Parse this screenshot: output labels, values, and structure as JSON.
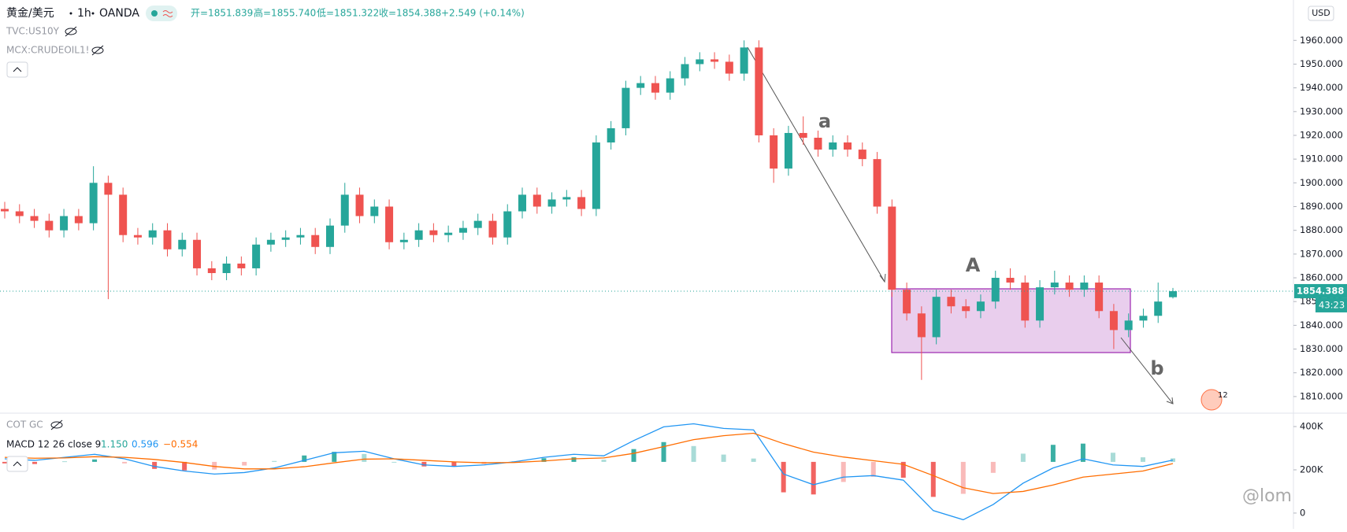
{
  "header": {
    "symbol": "黄金/美元",
    "interval": "1h",
    "broker": "OANDA",
    "ohlc": [
      "开=1851.839",
      "高=1855.740",
      "低=1851.322",
      "收=1854.388"
    ],
    "change": "+2.549 (+0.14%)",
    "overlays": [
      "TVC:US10Y",
      "MCX:CRUDEOIL1!"
    ],
    "countdown": "43:23",
    "events_badge": "12",
    "watermark": "@lom"
  },
  "annotations": {
    "a": "a",
    "A": "A",
    "b": "b"
  },
  "chart_data": [
    {
      "type": "candlestick",
      "currency": "USD",
      "up_color": "#26a69a",
      "down_color": "#ef5350",
      "open": [
        1889,
        1888,
        1886,
        1884,
        1880,
        1886,
        1883,
        1900,
        1895,
        1878,
        1877,
        1880,
        1872,
        1876,
        1864,
        1862,
        1866,
        1864,
        1874,
        1876,
        1877,
        1878,
        1873,
        1882,
        1895,
        1886,
        1890,
        1875,
        1876,
        1880,
        1878,
        1879,
        1881,
        1884,
        1877,
        1888,
        1895,
        1890,
        1893,
        1894,
        1889,
        1917,
        1923,
        1940,
        1942,
        1938,
        1944,
        1950,
        1952,
        1951,
        1946,
        1957,
        1920,
        1906,
        1921,
        1919,
        1914,
        1917,
        1914,
        1910,
        1890,
        1855,
        1845,
        1835,
        1852,
        1848,
        1846,
        1850,
        1860,
        1858,
        1842,
        1856,
        1858,
        1855,
        1858,
        1846,
        1838,
        1842,
        1844,
        1851.839
      ],
      "high": [
        1892,
        1891,
        1889,
        1887,
        1889,
        1889,
        1907,
        1903,
        1898,
        1881,
        1883,
        1883,
        1879,
        1879,
        1867,
        1869,
        1869,
        1877,
        1879,
        1880,
        1881,
        1881,
        1885,
        1900,
        1898,
        1893,
        1893,
        1879,
        1883,
        1883,
        1882,
        1884,
        1887,
        1887,
        1891,
        1898,
        1898,
        1896,
        1897,
        1897,
        1920,
        1926,
        1943,
        1945,
        1945,
        1947,
        1953,
        1955,
        1955,
        1954,
        1960,
        1960,
        1923,
        1924,
        1928,
        1922,
        1920,
        1920,
        1917,
        1913,
        1893,
        1858,
        1848,
        1855,
        1855,
        1851,
        1853,
        1863,
        1864,
        1861,
        1859,
        1863,
        1861,
        1861,
        1861,
        1849,
        1845,
        1847,
        1858,
        1855.74
      ],
      "low": [
        1885,
        1883,
        1881,
        1877,
        1877,
        1880,
        1880,
        1851,
        1875,
        1874,
        1874,
        1869,
        1869,
        1861,
        1859,
        1859,
        1861,
        1861,
        1871,
        1873,
        1874,
        1870,
        1870,
        1879,
        1883,
        1883,
        1872,
        1872,
        1873,
        1875,
        1875,
        1876,
        1878,
        1874,
        1874,
        1885,
        1887,
        1887,
        1890,
        1886,
        1886,
        1914,
        1920,
        1937,
        1935,
        1935,
        1941,
        1947,
        1948,
        1943,
        1943,
        1917,
        1900,
        1903,
        1916,
        1911,
        1911,
        1911,
        1907,
        1887,
        1852,
        1842,
        1817,
        1832,
        1845,
        1843,
        1843,
        1847,
        1855,
        1839,
        1839,
        1853,
        1852,
        1852,
        1843,
        1830,
        1835,
        1839,
        1841,
        1851.322
      ],
      "close": [
        1888,
        1886,
        1884,
        1880,
        1886,
        1883,
        1900,
        1895,
        1878,
        1877,
        1880,
        1872,
        1876,
        1864,
        1862,
        1866,
        1864,
        1874,
        1876,
        1877,
        1878,
        1873,
        1882,
        1895,
        1886,
        1890,
        1875,
        1876,
        1880,
        1878,
        1879,
        1881,
        1884,
        1877,
        1888,
        1895,
        1890,
        1893,
        1894,
        1889,
        1917,
        1923,
        1940,
        1942,
        1938,
        1944,
        1950,
        1952,
        1951,
        1946,
        1957,
        1920,
        1906,
        1921,
        1919,
        1914,
        1917,
        1914,
        1910,
        1890,
        1855,
        1845,
        1835,
        1852,
        1848,
        1846,
        1850,
        1860,
        1858,
        1842,
        1856,
        1858,
        1855,
        1858,
        1846,
        1838,
        1842,
        1844,
        1850,
        1854.388
      ],
      "ylim": [
        1803,
        1977
      ],
      "yticks": [
        {
          "value": 1810,
          "label": "1810.000"
        },
        {
          "value": 1820,
          "label": "1820.000"
        },
        {
          "value": 1830,
          "label": "1830.000"
        },
        {
          "value": 1840,
          "label": "1840.000"
        },
        {
          "value": 1850,
          "label": "1850.000"
        },
        {
          "value": 1860,
          "label": "1860.000"
        },
        {
          "value": 1870,
          "label": "1870.000"
        },
        {
          "value": 1880,
          "label": "1880.000"
        },
        {
          "value": 1890,
          "label": "1890.000"
        },
        {
          "value": 1900,
          "label": "1900.000"
        },
        {
          "value": 1910,
          "label": "1910.000"
        },
        {
          "value": 1920,
          "label": "1920.000"
        },
        {
          "value": 1930,
          "label": "1930.000"
        },
        {
          "value": 1940,
          "label": "1940.000"
        },
        {
          "value": 1950,
          "label": "1950.000"
        },
        {
          "value": 1960,
          "label": "1960.000"
        }
      ]
    },
    {
      "type": "macd",
      "title": "MACD 12 26 close 9",
      "y2_title": "COT GC",
      "ylim": [
        -22,
        16
      ],
      "series": [
        {
          "kind": "histogram",
          "color": "#26a69a",
          "down_color": "#ef5350",
          "last_label": "1.150",
          "values": [
            -0.5,
            -0.7,
            0.2,
            0.8,
            -0.5,
            -2.3,
            -2.8,
            -2.5,
            -1.2,
            0.3,
            2.1,
            3.3,
            2.6,
            0,
            -1.5,
            -1.5,
            -0.7,
            0.2,
            1.2,
            1.5,
            0.7,
            4.2,
            6.5,
            5.2,
            2.4,
            1.1,
            -10,
            -10.7,
            -6.6,
            -4.9,
            -5.2,
            -11.5,
            -10.5,
            -3.6,
            2.7,
            5.6,
            6,
            3,
            1.5,
            1.15
          ]
        },
        {
          "kind": "line",
          "color": "#2196f3",
          "last_label": "0.596",
          "values": [
            1,
            0.5,
            1.5,
            2.5,
            1,
            -1.5,
            -3,
            -4,
            -3.5,
            -2,
            0.5,
            3,
            3.5,
            1,
            -1,
            -1.5,
            -1,
            0,
            1.5,
            2.5,
            2,
            7,
            11.5,
            12.5,
            11,
            10.5,
            -4,
            -7.5,
            -5,
            -4.5,
            -6,
            -16,
            -19,
            -14,
            -7,
            -2,
            1,
            -1,
            -1.5,
            0.596
          ]
        },
        {
          "kind": "line",
          "color": "#ff6d00",
          "last_label": "−0.554",
          "values": [
            1.5,
            1.2,
            1.3,
            1.7,
            1.5,
            0.8,
            -0.2,
            -1.5,
            -2.3,
            -2.3,
            -1.6,
            -0.3,
            0.9,
            1,
            0.5,
            0,
            -0.3,
            -0.2,
            0.3,
            1,
            1.3,
            2.8,
            5,
            7.3,
            8.6,
            9.4,
            6,
            3.2,
            1.6,
            0.4,
            -0.8,
            -4.5,
            -8.5,
            -10.4,
            -9.7,
            -7.6,
            -5,
            -4,
            -3,
            -0.554
          ]
        }
      ],
      "y2lim": [
        -73000,
        462000
      ],
      "y2ticks": [
        {
          "value": 400000,
          "label": "400K"
        },
        {
          "value": 200000,
          "label": "200K"
        },
        0
      ]
    }
  ]
}
